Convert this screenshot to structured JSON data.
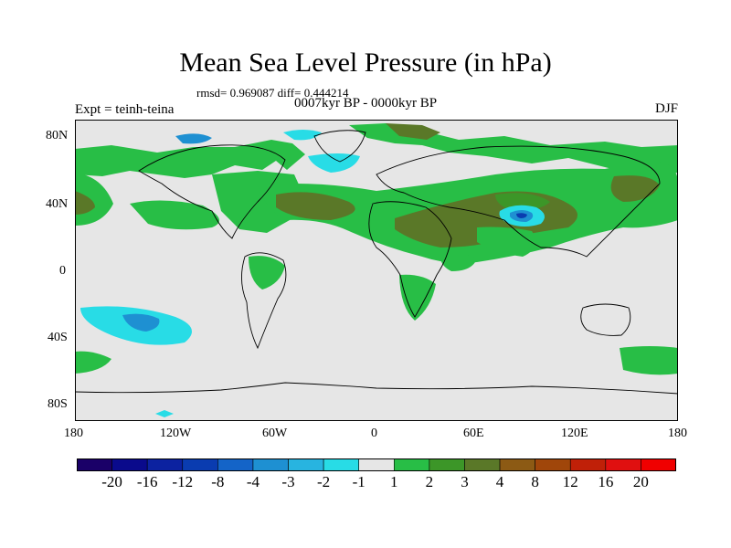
{
  "header": {
    "title": "Mean Sea Level Pressure (in hPa)",
    "stats": "rmsd= 0.969087 diff= 0.444214",
    "expt": "Expt = teinh-teina",
    "period": "0007kyr BP - 0000kyr BP",
    "season": "DJF"
  },
  "axes": {
    "lat_labels": [
      "80N",
      "40N",
      "0",
      "40S",
      "80S"
    ],
    "lon_labels": [
      "180",
      "120W",
      "60W",
      "0",
      "60E",
      "120E",
      "180"
    ]
  },
  "colorbar": {
    "labels": [
      "-20",
      "-16",
      "-12",
      "-8",
      "-4",
      "-3",
      "-2",
      "-1",
      "1",
      "2",
      "3",
      "4",
      "8",
      "12",
      "16",
      "20"
    ],
    "colors": [
      "#1a0068",
      "#0a0a8c",
      "#0c22a0",
      "#0a3cb0",
      "#1464c8",
      "#1e90d2",
      "#28b4e0",
      "#28dce6",
      "#e6e6e6",
      "#28be46",
      "#3c9628",
      "#5a7828",
      "#8c5a14",
      "#a0460a",
      "#c02008",
      "#e01010",
      "#f00000"
    ]
  },
  "legend_colors": {
    "land_outline": "#000000",
    "neutral": "#e6e6e6",
    "green": "#28be46",
    "dark_green": "#3c9628",
    "olive": "#5a7828",
    "cyan": "#28dce6",
    "blue": "#1e90d2"
  }
}
